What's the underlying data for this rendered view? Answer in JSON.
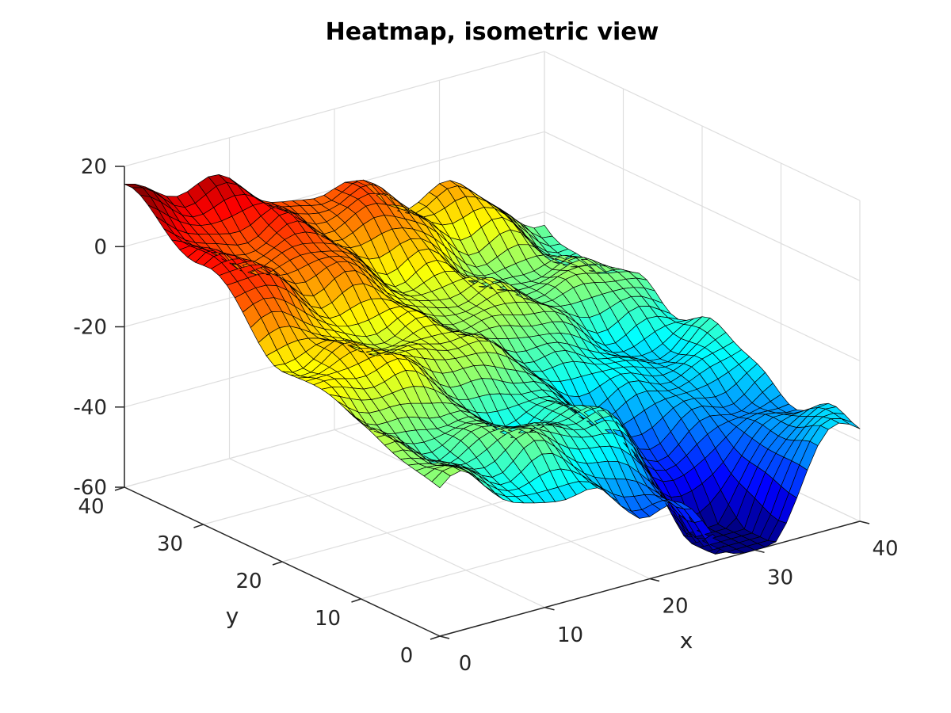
{
  "chart_data": {
    "type": "surface",
    "title": "Heatmap, isometric view",
    "xlabel": "x",
    "ylabel": "y",
    "zlabel": "",
    "xlim": [
      0,
      40
    ],
    "ylim": [
      0,
      40
    ],
    "zlim": [
      -60,
      20
    ],
    "xticks": [
      {
        "value": 0,
        "label": "0"
      },
      {
        "value": 10,
        "label": "10"
      },
      {
        "value": 20,
        "label": "20"
      },
      {
        "value": 30,
        "label": "30"
      },
      {
        "value": 40,
        "label": "40"
      }
    ],
    "yticks": [
      {
        "value": 0,
        "label": "0"
      },
      {
        "value": 10,
        "label": "10"
      },
      {
        "value": 20,
        "label": "20"
      },
      {
        "value": 30,
        "label": "30"
      },
      {
        "value": 40,
        "label": "40"
      }
    ],
    "zticks": [
      {
        "value": -60,
        "label": "-60"
      },
      {
        "value": -40,
        "label": "-40"
      },
      {
        "value": -20,
        "label": "-20"
      },
      {
        "value": 0,
        "label": "0"
      },
      {
        "value": 20,
        "label": "20"
      }
    ],
    "grid": true,
    "colormap": "jet",
    "edge_color": "#000000",
    "mesh_size": [
      41,
      41
    ],
    "surface_control_points": {
      "x": [
        0,
        10,
        20,
        30,
        40
      ],
      "y": [
        0,
        10,
        20,
        30,
        40
      ],
      "z_rows_by_y": [
        [
          -25,
          -32,
          -40,
          -55,
          -36
        ],
        [
          -18,
          -24,
          -32,
          -48,
          -34
        ],
        [
          -8,
          -14,
          -22,
          -30,
          -31
        ],
        [
          3,
          -4,
          -12,
          -20,
          -26
        ],
        [
          13,
          8,
          0,
          -10,
          -22
        ]
      ]
    }
  }
}
